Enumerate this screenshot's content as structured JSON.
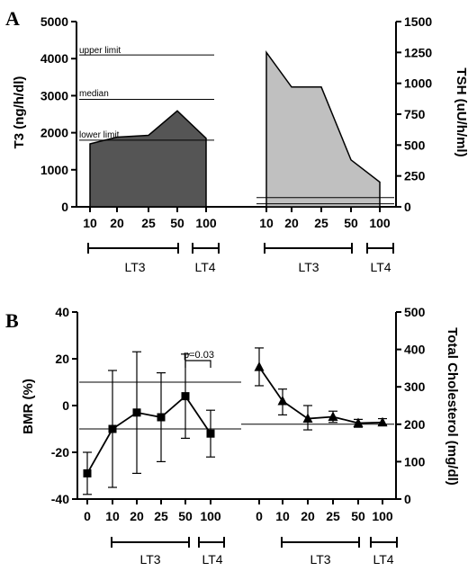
{
  "panels": {
    "a": {
      "letter": "A",
      "left_axis_title": "T3 (ng/h/dl)",
      "right_axis_title": "TSH (uU/h/ml)",
      "left_ticks": [
        "0",
        "1000",
        "2000",
        "3000",
        "4000",
        "5000"
      ],
      "right_ticks": [
        "0",
        "250",
        "500",
        "750",
        "1000",
        "1250",
        "1500"
      ],
      "ref_labels": {
        "upper": "upper limit",
        "median": "median",
        "lower": "lower limit"
      },
      "groups": [
        "LT3",
        "LT4",
        "LT3",
        "LT4"
      ]
    },
    "b": {
      "letter": "B",
      "left_axis_title": "BMR (%)",
      "right_axis_title": "Total Cholesterol (mg/dl)",
      "left_ticks": [
        "-40",
        "-20",
        "0",
        "20",
        "40"
      ],
      "right_ticks": [
        "0",
        "100",
        "200",
        "300",
        "400",
        "500"
      ],
      "pvalue": "p=0.03",
      "groups": [
        "LT3",
        "LT4",
        "LT3",
        "LT4"
      ]
    }
  },
  "chart_data": [
    {
      "type": "area",
      "panel": "A",
      "series": [
        {
          "name": "T3",
          "axis": "left",
          "color": "#555555",
          "categories": [
            "10",
            "20",
            "25",
            "50",
            "100"
          ],
          "values": [
            1700,
            1880,
            1930,
            2590,
            1850
          ]
        },
        {
          "name": "TSH",
          "axis": "right",
          "color": "#c0c0c0",
          "categories": [
            "10",
            "20",
            "25",
            "50",
            "100"
          ],
          "values": [
            1250,
            970,
            970,
            380,
            200
          ]
        }
      ],
      "reference_lines": [
        {
          "axis": "left",
          "label": "upper limit",
          "value": 4100
        },
        {
          "axis": "left",
          "label": "median",
          "value": 2900
        },
        {
          "axis": "left",
          "label": "lower limit",
          "value": 1800
        },
        {
          "axis": "right",
          "value": 75
        },
        {
          "axis": "right",
          "value": 25
        }
      ],
      "ylim_left": [
        0,
        5000
      ],
      "ylim_right": [
        0,
        1500
      ],
      "groups": [
        {
          "label": "LT3",
          "from": "10",
          "to": "50"
        },
        {
          "label": "LT4",
          "from": "100",
          "to": "100"
        }
      ]
    },
    {
      "type": "line",
      "panel": "B",
      "series": [
        {
          "name": "BMR",
          "axis": "left",
          "marker": "square",
          "categories": [
            "0",
            "10",
            "20",
            "25",
            "50",
            "100"
          ],
          "values": [
            -29,
            -10,
            -3,
            -5,
            4,
            -12
          ],
          "err_low": [
            -38,
            -35,
            -29,
            -24,
            -14,
            -22
          ],
          "err_high": [
            -20,
            15,
            23,
            14,
            22,
            -2
          ]
        },
        {
          "name": "Total Cholesterol",
          "axis": "right",
          "marker": "triangle",
          "categories": [
            "0",
            "10",
            "20",
            "25",
            "50",
            "100"
          ],
          "values": [
            353,
            262,
            215,
            220,
            203,
            205
          ],
          "err_low": [
            303,
            225,
            185,
            205,
            192,
            198
          ],
          "err_high": [
            404,
            294,
            250,
            235,
            213,
            215
          ]
        }
      ],
      "reference_lines": [
        {
          "axis": "left",
          "value": 10
        },
        {
          "axis": "left",
          "value": -10
        },
        {
          "axis": "right",
          "value": 200
        }
      ],
      "ylim_left": [
        -40,
        40
      ],
      "ylim_right": [
        0,
        500
      ],
      "annotation": {
        "text": "p=0.03",
        "between": [
          "50",
          "100"
        ]
      },
      "groups": [
        {
          "label": "LT3",
          "from": "10",
          "to": "50"
        },
        {
          "label": "LT4",
          "from": "100",
          "to": "100"
        }
      ]
    }
  ]
}
